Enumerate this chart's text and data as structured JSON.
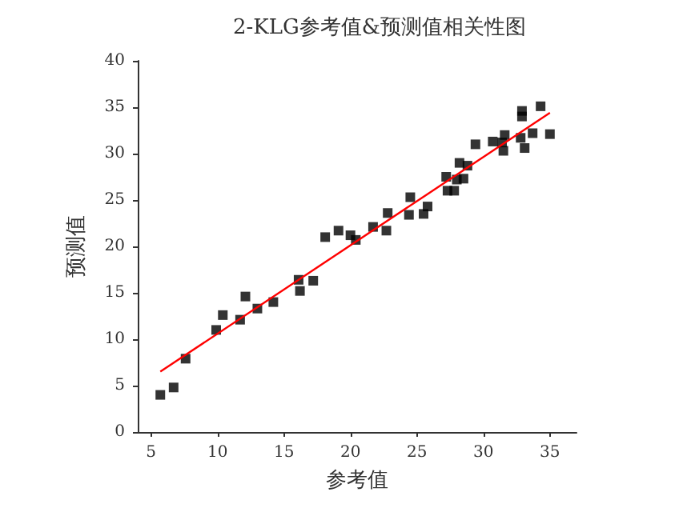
{
  "chart_data": {
    "type": "scatter",
    "title": "2-KLG参考值&预测值相关性图",
    "xlabel": "参考值",
    "ylabel": "预测值",
    "xlim": [
      4,
      37
    ],
    "xticks": [
      5,
      10,
      15,
      20,
      25,
      30,
      35
    ],
    "ylim": [
      0,
      40
    ],
    "yticks": [
      0,
      5,
      10,
      15,
      20,
      25,
      30,
      35,
      40
    ],
    "marker": "square",
    "series": [
      {
        "color": "#000000",
        "x": [
          5.7,
          6.7,
          7.6,
          9.9,
          10.4,
          11.7,
          12.1,
          13.0,
          14.2,
          16.1,
          16.2,
          17.2,
          18.1,
          19.1,
          20.0,
          20.4,
          21.7,
          22.7,
          22.8,
          24.5,
          24.4,
          25.5,
          25.8,
          27.2,
          27.3,
          27.8,
          28.0,
          28.5,
          28.2,
          28.8,
          29.4,
          30.7,
          31.6,
          31.5,
          31.4,
          32.8,
          33.1,
          32.9,
          32.9,
          33.7,
          34.3,
          35.0
        ],
        "values": [
          4.0,
          4.8,
          7.9,
          11.0,
          12.6,
          12.1,
          14.6,
          13.3,
          14.0,
          16.4,
          15.2,
          16.3,
          21.0,
          21.7,
          21.2,
          20.7,
          22.1,
          21.7,
          23.6,
          25.3,
          23.4,
          23.5,
          24.3,
          27.5,
          26.0,
          26.0,
          27.2,
          27.3,
          29.0,
          28.7,
          31.0,
          31.3,
          32.0,
          30.3,
          31.2,
          31.7,
          30.6,
          34.6,
          34.0,
          32.2,
          35.1,
          32.1
        ]
      },
      {
        "type": "line",
        "color": "#ff0000",
        "marker": "none",
        "x": [
          5.7,
          35.0
        ],
        "values": [
          6.5,
          34.4
        ]
      }
    ]
  }
}
